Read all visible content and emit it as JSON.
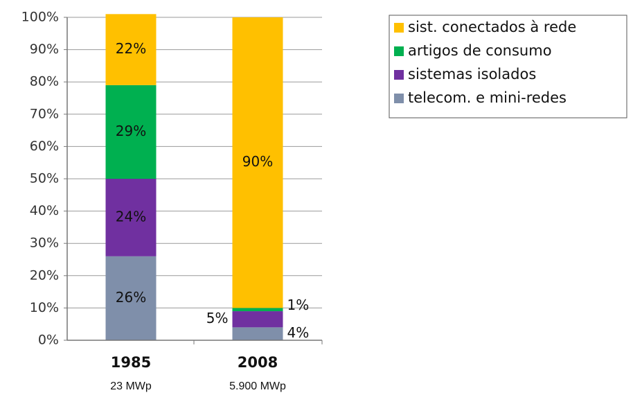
{
  "chart_data": {
    "type": "stacked_bar",
    "categories": [
      "1985",
      "2008"
    ],
    "category_sublabels": [
      "23 MWp",
      "5.900 MWp"
    ],
    "series": [
      {
        "name": "telecom. e mini-redes",
        "color": "#7f8faa",
        "values": [
          26,
          4
        ],
        "value_labels": [
          "26%",
          "4%"
        ]
      },
      {
        "name": "sistemas isolados",
        "color": "#7030a0",
        "values": [
          24,
          5
        ],
        "value_labels": [
          "24%",
          "5%"
        ]
      },
      {
        "name": "artigos de consumo",
        "color": "#00b050",
        "values": [
          29,
          1
        ],
        "value_labels": [
          "29%",
          "1%"
        ]
      },
      {
        "name": "sist. conectados à rede",
        "color": "#ffc000",
        "values": [
          22,
          90
        ],
        "value_labels": [
          "22%",
          "90%"
        ]
      }
    ],
    "ylim": [
      0,
      100
    ],
    "yticks": [
      {
        "value": 0,
        "label": "0%"
      },
      {
        "value": 10,
        "label": "10%"
      },
      {
        "value": 20,
        "label": "20%"
      },
      {
        "value": 30,
        "label": "30%"
      },
      {
        "value": 40,
        "label": "40%"
      },
      {
        "value": 50,
        "label": "50%"
      },
      {
        "value": 60,
        "label": "60%"
      },
      {
        "value": 70,
        "label": "70%"
      },
      {
        "value": 80,
        "label": "80%"
      },
      {
        "value": 90,
        "label": "90%"
      },
      {
        "value": 100,
        "label": "100%"
      }
    ],
    "grid": true
  }
}
